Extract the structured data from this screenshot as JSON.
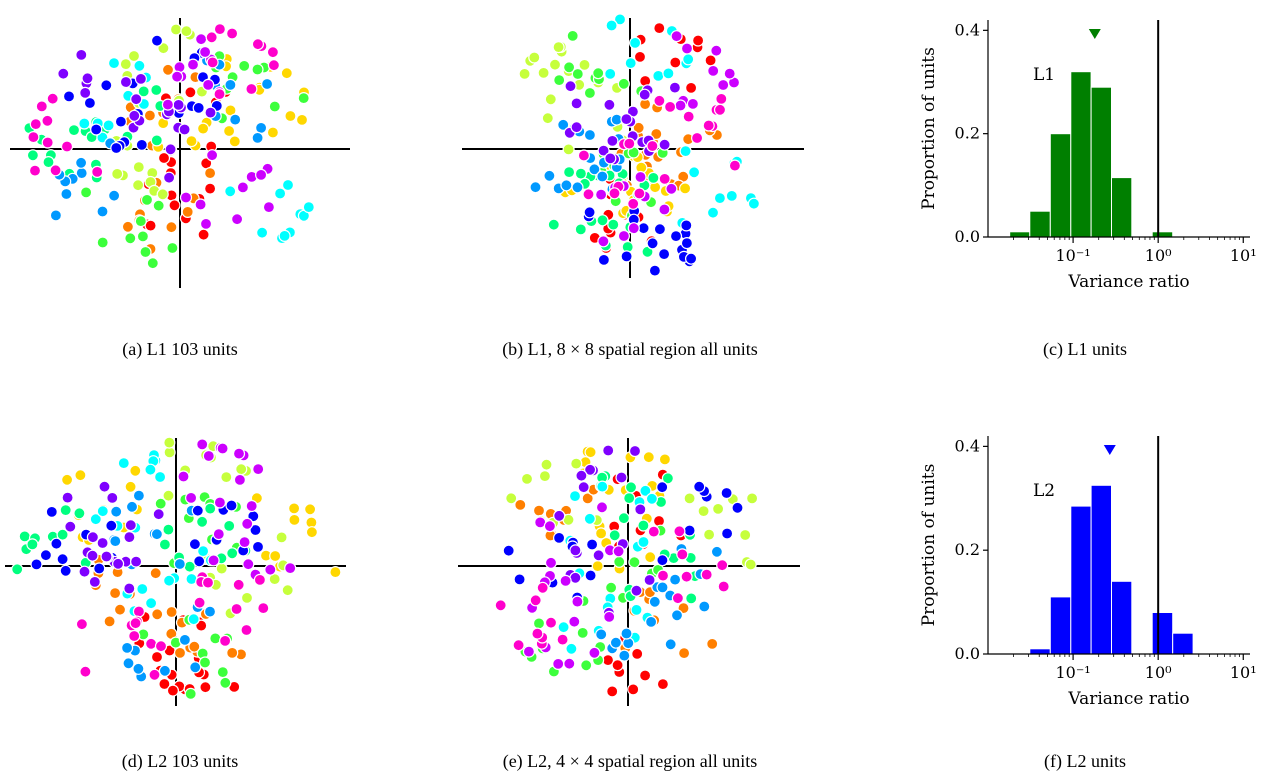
{
  "captions": {
    "a": "(a) L1 103 units",
    "b_prefix": "(b) L1, 8 × 8 spatial region all units",
    "c": "(c) L1 units",
    "d": "(d) L2 103 units",
    "e": "(e) L2, 4 × 4 spatial region all units",
    "f": "(f) L2 units"
  },
  "colors": {
    "palette": [
      "#ff0000",
      "#ff7f00",
      "#ffd700",
      "#c6ff3c",
      "#3cff3c",
      "#00ff7f",
      "#00ffff",
      "#0099ff",
      "#0000ff",
      "#7f00ff",
      "#cc00ff",
      "#ff00cc"
    ],
    "l1_hist": "#007f00",
    "l2_hist": "#0000ff"
  },
  "chart_data": [
    {
      "type": "scatter",
      "panel": "a",
      "points_per_color": 20,
      "seed": 11
    },
    {
      "type": "scatter",
      "panel": "b",
      "points_per_color": 20,
      "seed": 23
    },
    {
      "type": "bar",
      "panel": "c",
      "xlabel": "Variance ratio",
      "ylabel": "Proportion of units",
      "annotation": "L1",
      "xscale": "log",
      "xlim": [
        0.01,
        12
      ],
      "ylim": [
        0,
        0.42
      ],
      "yticks": [
        "0.0",
        "0.2",
        "0.4"
      ],
      "xticks": [
        "10⁻¹",
        "10⁰",
        "10¹"
      ],
      "bins": [
        {
          "lo": 0.018,
          "hi": 0.031,
          "value": 0.01
        },
        {
          "lo": 0.031,
          "hi": 0.054,
          "value": 0.05
        },
        {
          "lo": 0.054,
          "hi": 0.094,
          "value": 0.2
        },
        {
          "lo": 0.094,
          "hi": 0.163,
          "value": 0.32
        },
        {
          "lo": 0.163,
          "hi": 0.283,
          "value": 0.29
        },
        {
          "lo": 0.283,
          "hi": 0.49,
          "value": 0.115
        },
        {
          "lo": 0.49,
          "hi": 0.85,
          "value": 0.0
        },
        {
          "lo": 0.85,
          "hi": 1.48,
          "value": 0.01
        }
      ],
      "marker_x": 0.18,
      "vline_x": 1.0
    },
    {
      "type": "scatter",
      "panel": "d",
      "points_per_color": 20,
      "seed": 37
    },
    {
      "type": "scatter",
      "panel": "e",
      "points_per_color": 18,
      "seed": 51
    },
    {
      "type": "bar",
      "panel": "f",
      "xlabel": "Variance ratio",
      "ylabel": "Proportion of units",
      "annotation": "L2",
      "xscale": "log",
      "xlim": [
        0.01,
        12
      ],
      "ylim": [
        0,
        0.42
      ],
      "yticks": [
        "0.0",
        "0.2",
        "0.4"
      ],
      "xticks": [
        "10⁻¹",
        "10⁰",
        "10¹"
      ],
      "bins": [
        {
          "lo": 0.031,
          "hi": 0.054,
          "value": 0.01
        },
        {
          "lo": 0.054,
          "hi": 0.094,
          "value": 0.11
        },
        {
          "lo": 0.094,
          "hi": 0.163,
          "value": 0.285
        },
        {
          "lo": 0.163,
          "hi": 0.283,
          "value": 0.325
        },
        {
          "lo": 0.283,
          "hi": 0.49,
          "value": 0.14
        },
        {
          "lo": 0.49,
          "hi": 0.85,
          "value": 0.0
        },
        {
          "lo": 0.85,
          "hi": 1.48,
          "value": 0.08
        },
        {
          "lo": 1.48,
          "hi": 2.57,
          "value": 0.04
        }
      ],
      "marker_x": 0.27,
      "vline_x": 1.0
    }
  ]
}
